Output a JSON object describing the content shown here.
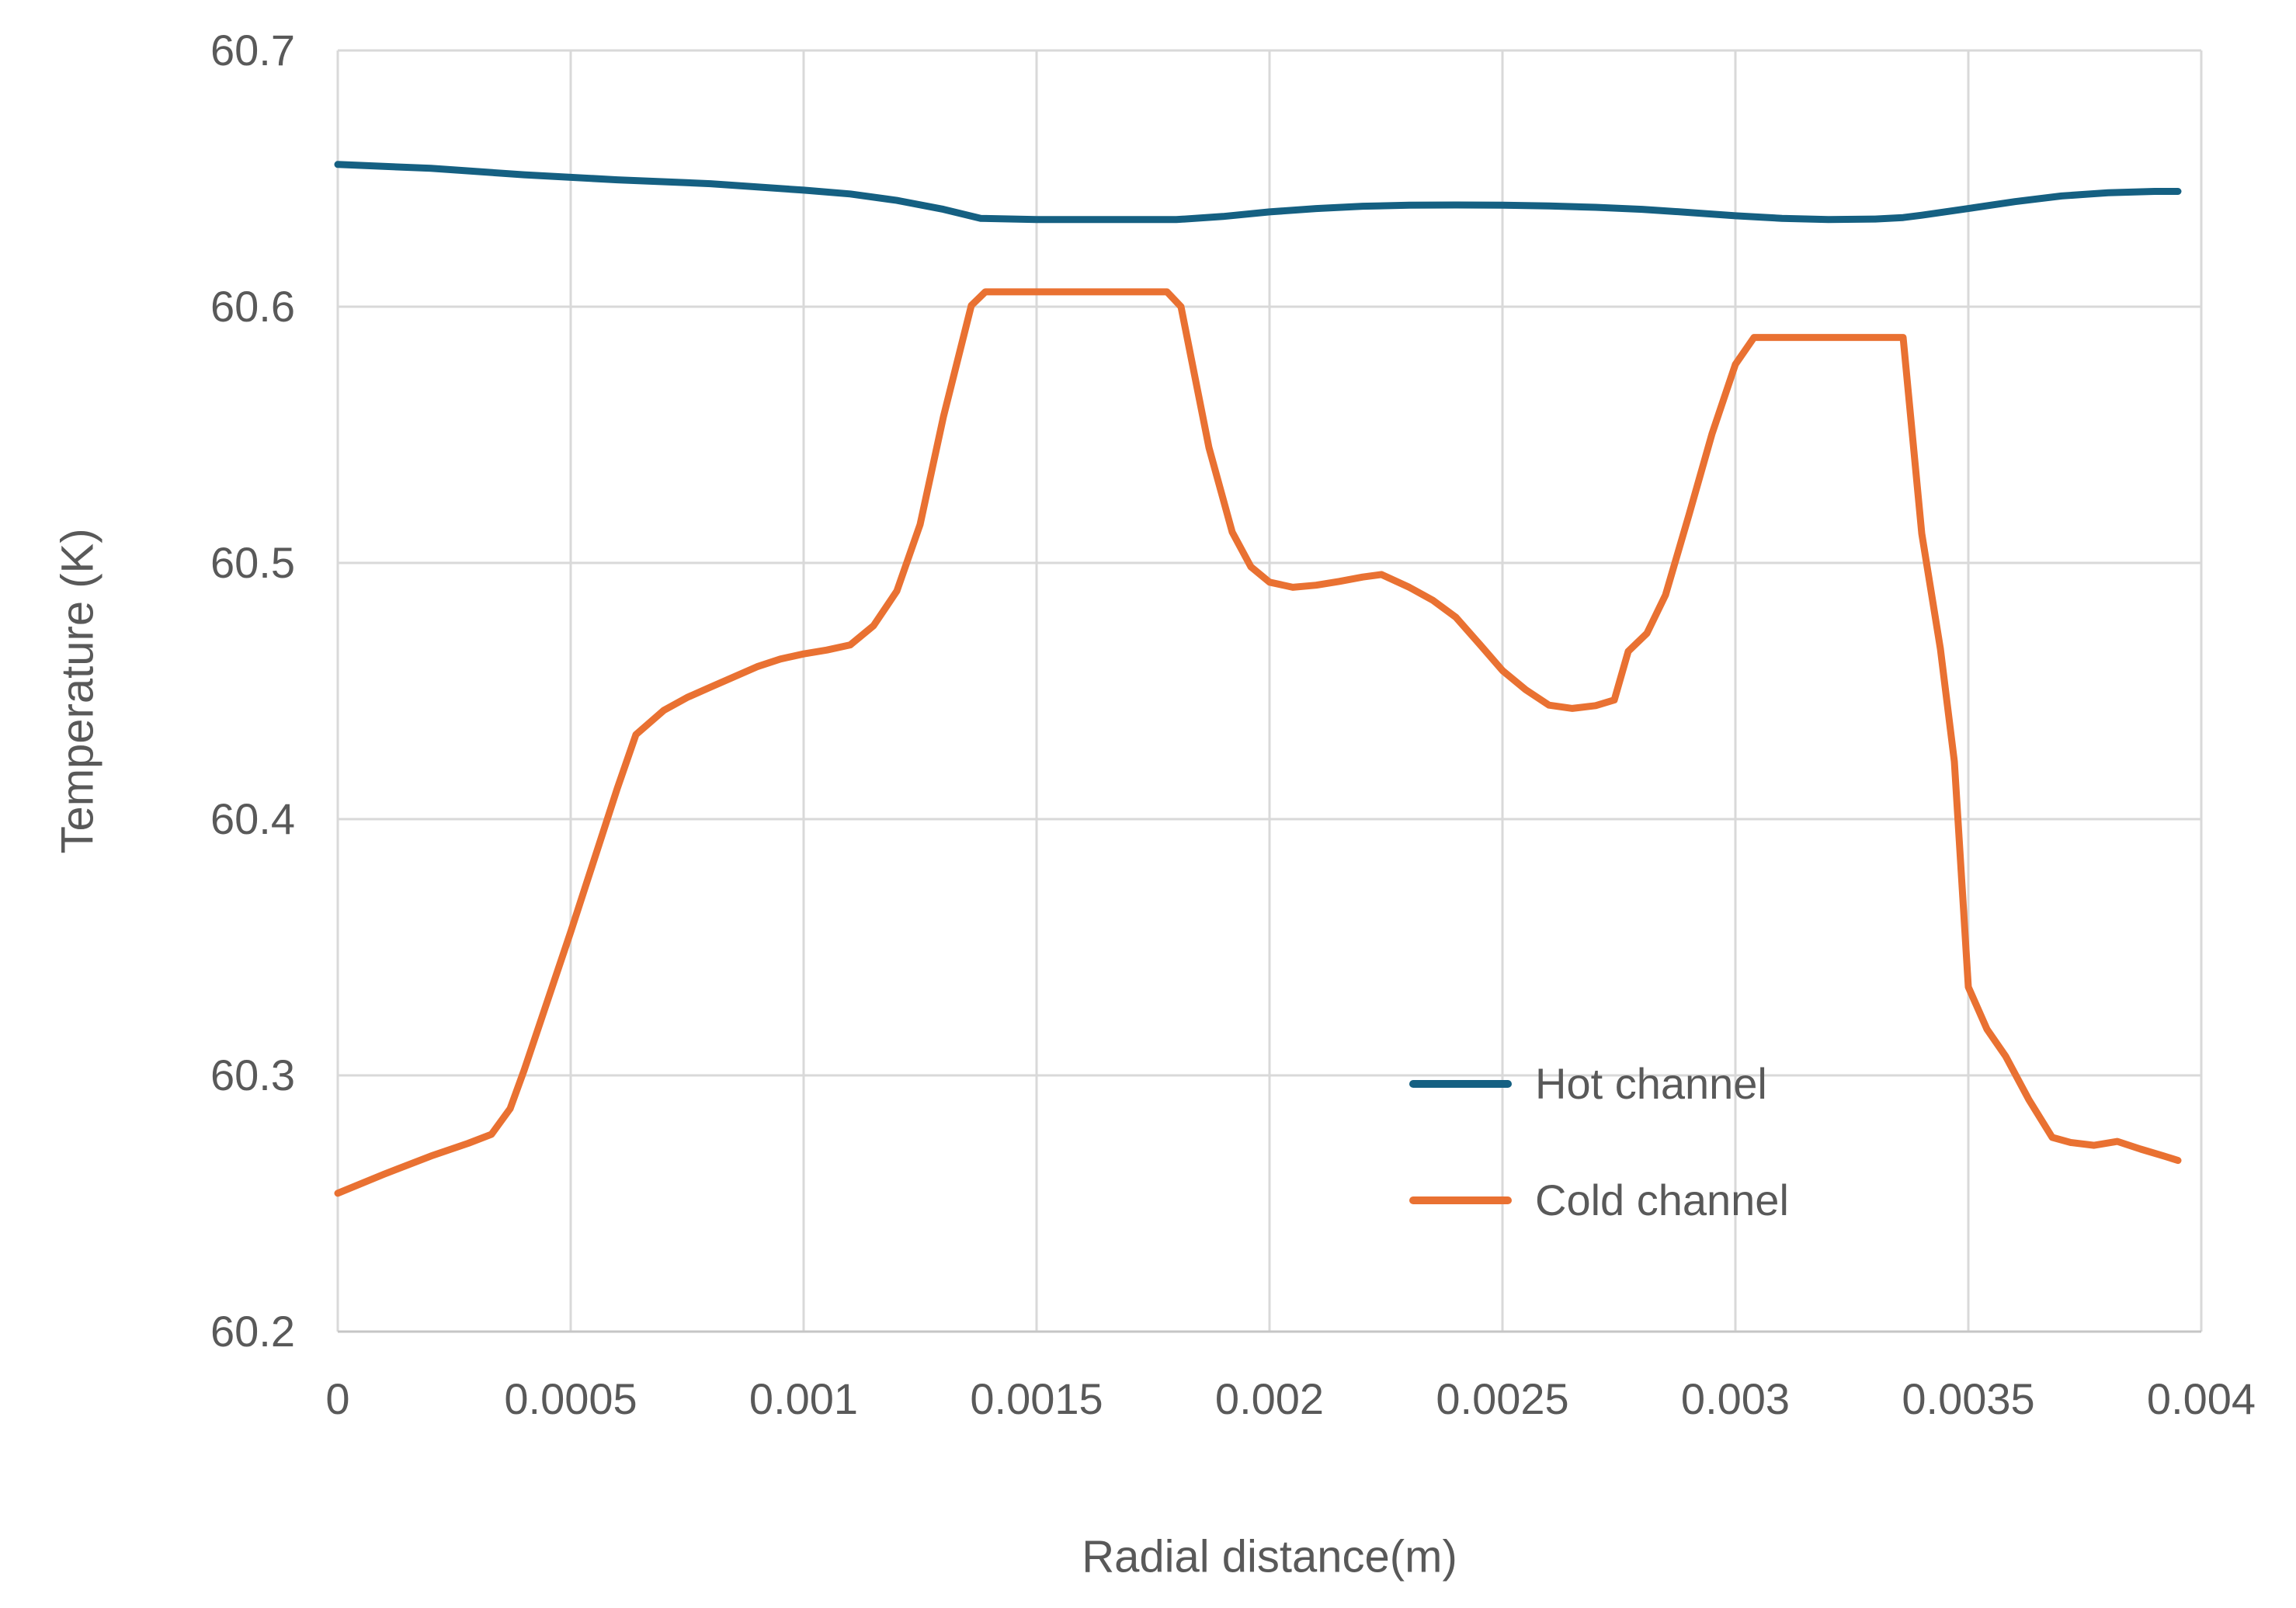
{
  "colors": {
    "background": "#FFFFFF",
    "grid": "#D9D9D9",
    "axis_line": "#C6C6C6",
    "text": "#595959",
    "hot_channel": "#156082",
    "cold_channel": "#E97132"
  },
  "chart_data": {
    "type": "line",
    "xlabel": "Radial distance(m)",
    "ylabel": "Temperature (K)",
    "xlim": [
      0,
      0.004
    ],
    "ylim": [
      60.2,
      60.7
    ],
    "grid": true,
    "legend_position": "inside-lower-right",
    "x_ticks": {
      "values": [
        0,
        0.0005,
        0.001,
        0.0015,
        0.002,
        0.0025,
        0.003,
        0.0035,
        0.004
      ],
      "labels": [
        "0",
        "0.0005",
        "0.001",
        "0.0015",
        "0.002",
        "0.0025",
        "0.003",
        "0.0035",
        "0.004"
      ]
    },
    "y_ticks": {
      "values": [
        60.2,
        60.3,
        60.4,
        60.5,
        60.6,
        60.7
      ],
      "labels": [
        "60.2",
        "60.3",
        "60.4",
        "60.5",
        "60.6",
        "60.7"
      ]
    },
    "series": [
      {
        "name": "Hot channel",
        "color": "#156082",
        "points": [
          [
            0,
            60.6555
          ],
          [
            0.0002,
            60.654
          ],
          [
            0.0004,
            60.6515
          ],
          [
            0.0006,
            60.6495
          ],
          [
            0.0008,
            60.648
          ],
          [
            0.001,
            60.6455
          ],
          [
            0.0011,
            60.644
          ],
          [
            0.0012,
            60.6415
          ],
          [
            0.0013,
            60.638
          ],
          [
            0.00138,
            60.6345
          ],
          [
            0.0015,
            60.634
          ],
          [
            0.0016,
            60.634
          ],
          [
            0.0017,
            60.634
          ],
          [
            0.0018,
            60.634
          ],
          [
            0.0019,
            60.6352
          ],
          [
            0.002,
            60.637
          ],
          [
            0.0021,
            60.6383
          ],
          [
            0.0022,
            60.6392
          ],
          [
            0.0023,
            60.6396
          ],
          [
            0.0024,
            60.6397
          ],
          [
            0.0025,
            60.6396
          ],
          [
            0.0026,
            60.6393
          ],
          [
            0.0027,
            60.6388
          ],
          [
            0.0028,
            60.638
          ],
          [
            0.0029,
            60.6368
          ],
          [
            0.003,
            60.6355
          ],
          [
            0.0031,
            60.6345
          ],
          [
            0.0032,
            60.634
          ],
          [
            0.0033,
            60.6342
          ],
          [
            0.00336,
            60.6348
          ],
          [
            0.0034,
            60.6357
          ],
          [
            0.0035,
            60.6383
          ],
          [
            0.0036,
            60.641
          ],
          [
            0.0037,
            60.6432
          ],
          [
            0.0038,
            60.6445
          ],
          [
            0.0039,
            60.645
          ],
          [
            0.00395,
            60.645
          ]
        ]
      },
      {
        "name": "Cold channel",
        "color": "#E97132",
        "points": [
          [
            0,
            60.254
          ],
          [
            0.0001,
            60.2615
          ],
          [
            0.0002,
            60.2685
          ],
          [
            0.00028,
            60.2735
          ],
          [
            0.00033,
            60.277
          ],
          [
            0.00037,
            60.287
          ],
          [
            0.0004,
            60.302
          ],
          [
            0.00045,
            60.329
          ],
          [
            0.0005,
            60.356
          ],
          [
            0.00055,
            60.384
          ],
          [
            0.0006,
            60.412
          ],
          [
            0.00064,
            60.433
          ],
          [
            0.0007,
            60.4425
          ],
          [
            0.00075,
            60.4475
          ],
          [
            0.0008,
            60.4515
          ],
          [
            0.00085,
            60.4555
          ],
          [
            0.0009,
            60.4595
          ],
          [
            0.00095,
            60.4625
          ],
          [
            0.001,
            60.4645
          ],
          [
            0.00105,
            60.466
          ],
          [
            0.0011,
            60.468
          ],
          [
            0.00115,
            60.4755
          ],
          [
            0.0012,
            60.489
          ],
          [
            0.00125,
            60.515
          ],
          [
            0.0013,
            60.557
          ],
          [
            0.00136,
            60.6005
          ],
          [
            0.00139,
            60.6058
          ],
          [
            0.0015,
            60.6058
          ],
          [
            0.0016,
            60.6058
          ],
          [
            0.0017,
            60.6058
          ],
          [
            0.00178,
            60.6058
          ],
          [
            0.00181,
            60.6
          ],
          [
            0.00187,
            60.545
          ],
          [
            0.00192,
            60.512
          ],
          [
            0.00196,
            60.4985
          ],
          [
            0.002,
            60.4925
          ],
          [
            0.00205,
            60.4905
          ],
          [
            0.0021,
            60.4913
          ],
          [
            0.00215,
            60.4928
          ],
          [
            0.0022,
            60.4945
          ],
          [
            0.00224,
            60.4955
          ],
          [
            0.0023,
            60.4905
          ],
          [
            0.00235,
            60.4855
          ],
          [
            0.0024,
            60.4788
          ],
          [
            0.00245,
            60.4685
          ],
          [
            0.0025,
            60.458
          ],
          [
            0.00255,
            60.4505
          ],
          [
            0.0026,
            60.4445
          ],
          [
            0.00265,
            60.4432
          ],
          [
            0.0027,
            60.4443
          ],
          [
            0.00274,
            60.4465
          ],
          [
            0.00277,
            60.4655
          ],
          [
            0.00281,
            60.4725
          ],
          [
            0.00285,
            60.4875
          ],
          [
            0.0029,
            60.5185
          ],
          [
            0.00295,
            60.5505
          ],
          [
            0.003,
            60.5775
          ],
          [
            0.00304,
            60.588
          ],
          [
            0.0031,
            60.588
          ],
          [
            0.0032,
            60.588
          ],
          [
            0.0033,
            60.588
          ],
          [
            0.00336,
            60.588
          ],
          [
            0.0034,
            60.5115
          ],
          [
            0.00344,
            60.4665
          ],
          [
            0.00347,
            60.4225
          ],
          [
            0.0035,
            60.3345
          ],
          [
            0.00354,
            60.318
          ],
          [
            0.00358,
            60.3075
          ],
          [
            0.00363,
            60.2905
          ],
          [
            0.00368,
            60.2758
          ],
          [
            0.00372,
            60.2738
          ],
          [
            0.00377,
            60.2727
          ],
          [
            0.00382,
            60.2742
          ],
          [
            0.00387,
            60.2712
          ],
          [
            0.00392,
            60.2685
          ],
          [
            0.00395,
            60.2668
          ]
        ]
      }
    ]
  }
}
